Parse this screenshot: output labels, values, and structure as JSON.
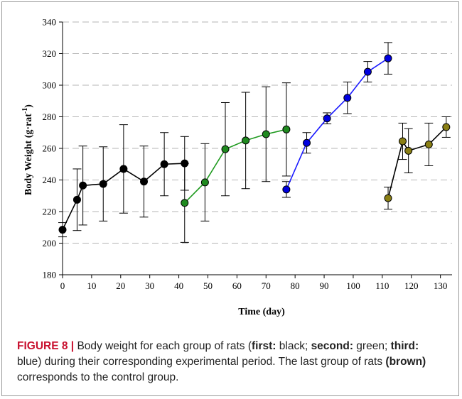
{
  "chart_data": {
    "type": "line",
    "xlabel": "Time (day)",
    "ylabel_main": "Body Weight (g·rat",
    "ylabel_sup": "-1",
    "ylabel_close": ")",
    "xlim": [
      0,
      134
    ],
    "ylim": [
      180,
      340
    ],
    "xticks": [
      0,
      10,
      20,
      30,
      40,
      50,
      60,
      70,
      80,
      90,
      100,
      110,
      120,
      130
    ],
    "yticks": [
      180,
      200,
      220,
      240,
      260,
      280,
      300,
      320,
      340
    ],
    "grid": "horizontal dashed",
    "series": [
      {
        "color": "#000000",
        "line": "#000000",
        "x": [
          0,
          5,
          7,
          14,
          21,
          28,
          35,
          42
        ],
        "y": [
          208.5,
          227.5,
          236.5,
          237.5,
          247,
          239,
          250,
          250.5
        ],
        "err": [
          4.5,
          19.5,
          25,
          23.5,
          28,
          22.5,
          20,
          17
        ]
      },
      {
        "color": "#1f8a1f",
        "line": "#1f9a1f",
        "x": [
          42,
          49,
          56,
          63,
          70,
          77
        ],
        "y": [
          225.5,
          238.5,
          259.5,
          265,
          269,
          272
        ],
        "err": [
          25,
          24.5,
          29.5,
          30.5,
          30,
          29.5
        ]
      },
      {
        "color": "#0000e0",
        "line": "#1a1aff",
        "x": [
          77,
          84,
          91,
          98,
          105,
          112
        ],
        "y": [
          234,
          263.5,
          279,
          292,
          308.5,
          317
        ],
        "err": [
          5,
          6.5,
          3.5,
          10,
          6.5,
          10
        ]
      },
      {
        "color": "#8a7f14",
        "line": "#000000",
        "x": [
          112,
          117,
          119,
          126,
          132
        ],
        "y": [
          228.5,
          264.5,
          258.5,
          262.5,
          273.5
        ],
        "err": [
          7,
          11.5,
          14,
          13.5,
          6.5
        ]
      }
    ]
  },
  "caption": {
    "lead": "FIGURE 8 |",
    "p1": " Body weight for each group of rats (",
    "b1": "first:",
    "p2": " black; ",
    "b2": "second:",
    "p3": " green; ",
    "b3": "third:",
    "p4": " blue) during their corresponding experimental period. The last group of rats ",
    "b4": "(brown)",
    "p5": " corresponds to the control group."
  }
}
